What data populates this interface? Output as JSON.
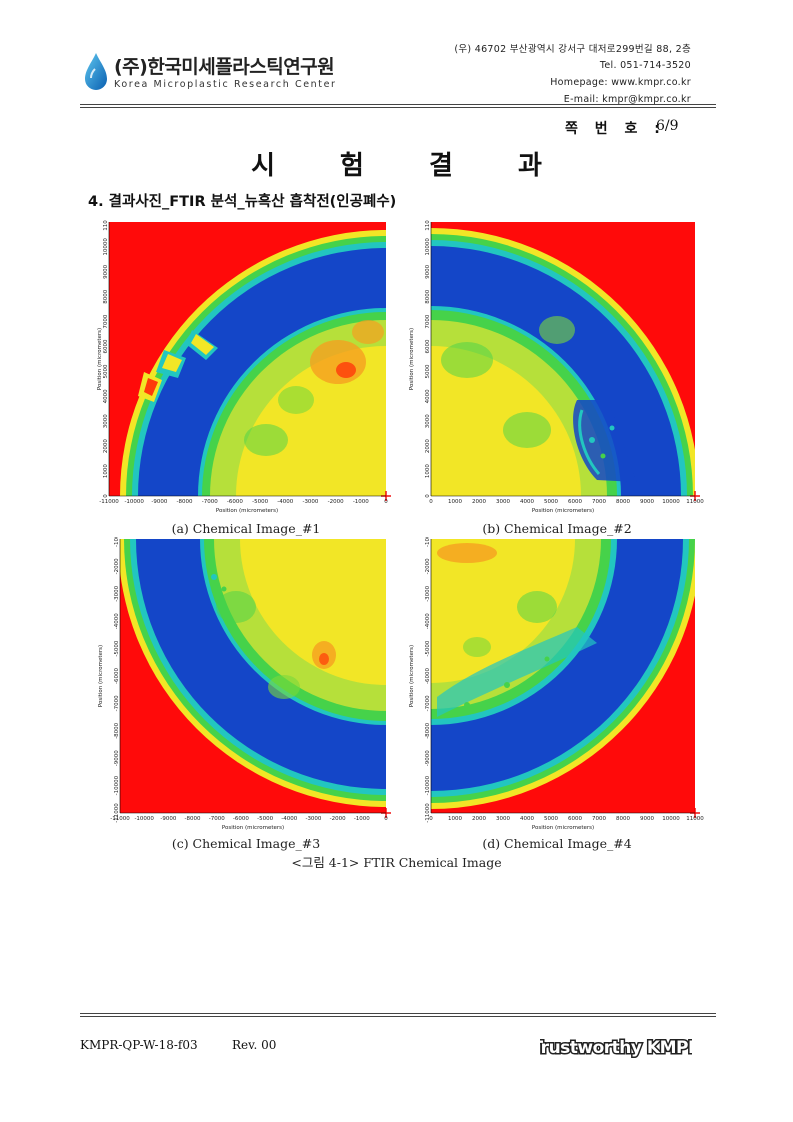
{
  "header": {
    "company_ko": "(주)한국미세플라스틱연구원",
    "company_en": "Korea Microplastic Research Center",
    "address": "(우) 46702 부산광역시 강서구 대저로299번길 88, 2층",
    "tel": "Tel. 051-714-3520",
    "homepage": "Homepage: www.kmpr.co.kr",
    "email": "E-mail: kmpr@kmpr.co.kr",
    "page_label": "쪽 번 호 :",
    "page_number": "6/9"
  },
  "title": "시 험 결 과",
  "section_title": "4. 결과사진_FTIR 분석_뉴흑산 흡착전(인공폐수)",
  "panels": [
    {
      "caption": "(a) Chemical Image_#1",
      "x_label": "Position (micrometers)",
      "y_label": "Position (micrometers)",
      "x_ticks": [
        "-11000",
        "-10000",
        "-9000",
        "-8000",
        "-7000",
        "-6000",
        "-5000",
        "-4000",
        "-3000",
        "-2000",
        "-1000",
        "0"
      ],
      "y_ticks": [
        "0",
        "1000",
        "2000",
        "3000",
        "4000",
        "5000",
        "6000",
        "7000",
        "8000",
        "9000",
        "10000",
        "11000"
      ]
    },
    {
      "caption": "(b) Chemical Image_#2",
      "x_label": "Position (micrometers)",
      "y_label": "Position (micrometers)",
      "x_ticks": [
        "0",
        "1000",
        "2000",
        "3000",
        "4000",
        "5000",
        "6000",
        "7000",
        "8000",
        "9000",
        "10000",
        "11000"
      ],
      "y_ticks": [
        "0",
        "1000",
        "2000",
        "3000",
        "4000",
        "5000",
        "6000",
        "7000",
        "8000",
        "9000",
        "10000",
        "11000"
      ]
    },
    {
      "caption": "(c) Chemical Image_#3",
      "x_label": "Position (micrometers)",
      "y_label": "Position (micrometers)",
      "x_ticks": [
        "-11000",
        "-10000",
        "-9000",
        "-8000",
        "-7000",
        "-6000",
        "-5000",
        "-4000",
        "-3000",
        "-2000",
        "-1000",
        "0"
      ],
      "y_ticks": [
        "-1000",
        "-2000",
        "-3000",
        "-4000",
        "-5000",
        "-6000",
        "-7000",
        "-8000",
        "-9000",
        "-10000",
        "-11000"
      ]
    },
    {
      "caption": "(d) Chemical Image_#4",
      "x_label": "Position (micrometers)",
      "y_label": "Position (micrometers)",
      "x_ticks": [
        "0",
        "1000",
        "2000",
        "3000",
        "4000",
        "5000",
        "6000",
        "7000",
        "8000",
        "9000",
        "10000",
        "11000"
      ],
      "y_ticks": [
        "-1000",
        "-2000",
        "-3000",
        "-4000",
        "-5000",
        "-6000",
        "-7000",
        "-8000",
        "-9000",
        "-10000",
        "-11000"
      ]
    }
  ],
  "figure_caption": "<그림 4-1> FTIR Chemical Image",
  "footer": {
    "doc_code": "KMPR-QP-W-18-f03",
    "revision": "Rev. 00",
    "brand": "Trustworthy KMPR"
  },
  "colors": {
    "red": "#ff0a0a",
    "blue": "#1446c8",
    "yellow": "#f2e626",
    "green": "#46d24a",
    "cyan": "#22c6c0"
  }
}
